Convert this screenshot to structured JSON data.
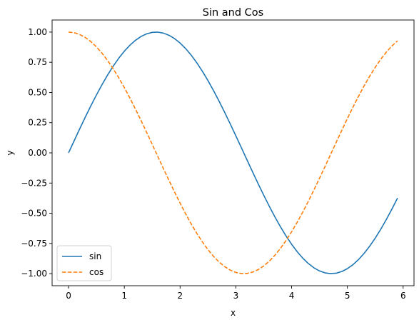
{
  "chart_data": {
    "type": "line",
    "title": "Sin and Cos",
    "xlabel": "x",
    "ylabel": "y",
    "xlim": [
      -0.295,
      6.195
    ],
    "ylim": [
      -1.1,
      1.1
    ],
    "xticks": [
      0,
      1,
      2,
      3,
      4,
      5,
      6
    ],
    "xtick_labels": [
      "0",
      "1",
      "2",
      "3",
      "4",
      "5",
      "6"
    ],
    "yticks": [
      -1.0,
      -0.75,
      -0.5,
      -0.25,
      0.0,
      0.25,
      0.5,
      0.75,
      1.0
    ],
    "ytick_labels": [
      "−1.00",
      "−0.75",
      "−0.50",
      "−0.25",
      "0.00",
      "0.25",
      "0.50",
      "0.75",
      "1.00"
    ],
    "grid": false,
    "legend_position": "lower-left",
    "x": [
      0.0,
      0.1,
      0.2,
      0.3,
      0.4,
      0.5,
      0.6,
      0.7,
      0.8,
      0.9,
      1.0,
      1.1,
      1.2,
      1.3,
      1.4,
      1.5,
      1.6,
      1.7,
      1.8,
      1.9,
      2.0,
      2.1,
      2.2,
      2.3,
      2.4,
      2.5,
      2.6,
      2.7,
      2.8,
      2.9,
      3.0,
      3.1,
      3.2,
      3.3,
      3.4,
      3.5,
      3.6,
      3.7,
      3.8,
      3.9,
      4.0,
      4.1,
      4.2,
      4.3,
      4.4,
      4.5,
      4.6,
      4.7,
      4.8,
      4.9,
      5.0,
      5.1,
      5.2,
      5.3,
      5.4,
      5.5,
      5.6,
      5.7,
      5.8,
      5.9
    ],
    "series": [
      {
        "name": "sin",
        "color": "#1f77b4",
        "style": "solid",
        "values": [
          0.0,
          0.0998,
          0.1987,
          0.2955,
          0.3894,
          0.4794,
          0.5646,
          0.6442,
          0.7174,
          0.7833,
          0.8415,
          0.8912,
          0.932,
          0.9636,
          0.9854,
          0.9975,
          0.9996,
          0.9917,
          0.9738,
          0.9463,
          0.9093,
          0.8632,
          0.8085,
          0.7457,
          0.6755,
          0.5985,
          0.5155,
          0.4274,
          0.335,
          0.2392,
          0.1411,
          0.0416,
          -0.0584,
          -0.1577,
          -0.2555,
          -0.3508,
          -0.4425,
          -0.5298,
          -0.6119,
          -0.6878,
          -0.7568,
          -0.8183,
          -0.8716,
          -0.9162,
          -0.9516,
          -0.9775,
          -0.9937,
          -0.9999,
          -0.9962,
          -0.9825,
          -0.9589,
          -0.9258,
          -0.8835,
          -0.8323,
          -0.7728,
          -0.7055,
          -0.6313,
          -0.5507,
          -0.4646,
          -0.3739
        ]
      },
      {
        "name": "cos",
        "color": "#ff7f0e",
        "style": "dashed",
        "values": [
          1.0,
          0.995,
          0.9801,
          0.9553,
          0.9211,
          0.8776,
          0.8253,
          0.7648,
          0.6967,
          0.6216,
          0.5403,
          0.4536,
          0.3624,
          0.2675,
          0.17,
          0.0707,
          -0.0292,
          -0.1288,
          -0.2272,
          -0.3233,
          -0.4161,
          -0.5048,
          -0.5885,
          -0.6663,
          -0.7374,
          -0.8011,
          -0.8569,
          -0.9041,
          -0.9422,
          -0.971,
          -0.99,
          -0.9991,
          -0.9983,
          -0.9875,
          -0.9668,
          -0.9365,
          -0.8968,
          -0.8481,
          -0.791,
          -0.7259,
          -0.6536,
          -0.5748,
          -0.4903,
          -0.4008,
          -0.3073,
          -0.2108,
          -0.1122,
          -0.0124,
          0.0875,
          0.1865,
          0.2837,
          0.378,
          0.4685,
          0.5544,
          0.6347,
          0.7087,
          0.7756,
          0.8347,
          0.8855,
          0.9275
        ]
      }
    ]
  }
}
